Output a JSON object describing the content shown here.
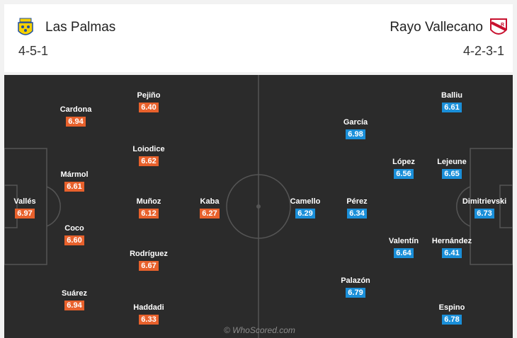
{
  "home": {
    "name": "Las Palmas",
    "formation": "4-5-1",
    "crest_icon": "las-palmas-crest-icon",
    "color": "#e8612c",
    "players": [
      {
        "name": "Pejiño",
        "rating": "6.40"
      },
      {
        "name": "Cardona",
        "rating": "6.94"
      },
      {
        "name": "Loiodice",
        "rating": "6.62"
      },
      {
        "name": "Mármol",
        "rating": "6.61"
      },
      {
        "name": "Vallés",
        "rating": "6.97"
      },
      {
        "name": "Muñoz",
        "rating": "6.12"
      },
      {
        "name": "Kaba",
        "rating": "6.27"
      },
      {
        "name": "Coco",
        "rating": "6.60"
      },
      {
        "name": "Rodríguez",
        "rating": "6.67"
      },
      {
        "name": "Suárez",
        "rating": "6.94"
      },
      {
        "name": "Haddadi",
        "rating": "6.33"
      }
    ]
  },
  "away": {
    "name": "Rayo Vallecano",
    "formation": "4-2-3-1",
    "crest_icon": "rayo-vallecano-crest-icon",
    "color": "#1a8fd9",
    "players": [
      {
        "name": "Balliu",
        "rating": "6.61"
      },
      {
        "name": "García",
        "rating": "6.98"
      },
      {
        "name": "López",
        "rating": "6.56"
      },
      {
        "name": "Lejeune",
        "rating": "6.65"
      },
      {
        "name": "Camello",
        "rating": "6.29"
      },
      {
        "name": "Pérez",
        "rating": "6.34"
      },
      {
        "name": "Dimitrievski",
        "rating": "6.73"
      },
      {
        "name": "Valentín",
        "rating": "6.64"
      },
      {
        "name": "Hernández",
        "rating": "6.41"
      },
      {
        "name": "Palazón",
        "rating": "6.79"
      },
      {
        "name": "Espino",
        "rating": "6.78"
      }
    ]
  },
  "pitch_color": "#2b2b2b",
  "watermark": "© WhoScored.com"
}
